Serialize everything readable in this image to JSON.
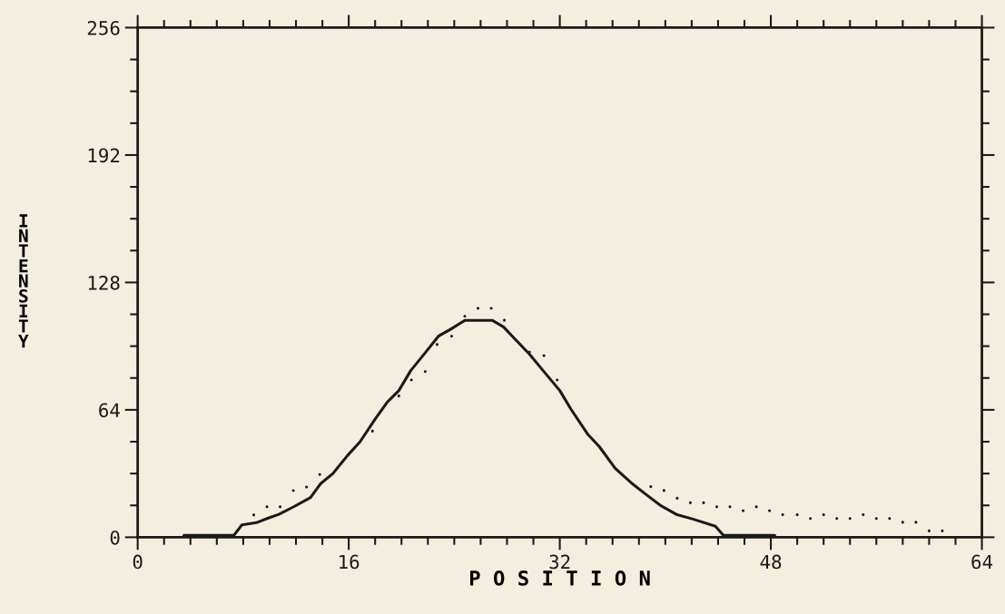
{
  "chart_data": {
    "type": "line",
    "xlabel": "P O S I T I O N",
    "ylabel": "INTENSITY",
    "xlim": [
      0,
      64
    ],
    "ylim": [
      0,
      256
    ],
    "xticks": [
      0,
      16,
      32,
      48,
      64
    ],
    "yticks": [
      0,
      64,
      128,
      192,
      256
    ],
    "grid": false,
    "legend": false,
    "series": [
      {
        "color": "#1a1a1a",
        "x": [
          3.5,
          7.3,
          7.9,
          9.0,
          9.85,
          10.7,
          11.8,
          13.1,
          13.85,
          14.8,
          15.9,
          16.85,
          18.0,
          18.9,
          19.8,
          20.7,
          21.9,
          22.8,
          23.8,
          24.8,
          26.9,
          27.75,
          28.4,
          29.7,
          30.85,
          32.0,
          32.85,
          34.1,
          35.0,
          36.2,
          37.4,
          38.6,
          39.7,
          40.9,
          42.1,
          43.8,
          44.4,
          48.3
        ],
        "values": [
          1,
          1,
          6.2,
          7.3,
          9.5,
          11.5,
          15.2,
          19.9,
          26.8,
          32,
          41,
          47.9,
          59.3,
          67.7,
          73.7,
          83.7,
          93.5,
          101,
          104.8,
          108.9,
          108.9,
          105.6,
          101,
          92,
          82.8,
          73.7,
          64.3,
          51.9,
          45.5,
          34.6,
          27.4,
          21.2,
          15.7,
          11.3,
          9.1,
          5.5,
          1,
          1
        ]
      },
      {
        "type": "scatter",
        "color": "#1a1a1a",
        "x": [
          8.8,
          9.8,
          10.8,
          11.8,
          12.8,
          13.8,
          14.8,
          15.9,
          17.8,
          19.8,
          20.75,
          21.8,
          22.7,
          23.8,
          24.8,
          25.8,
          26.8,
          27.8,
          29.7,
          30.8,
          31.8,
          38.9,
          39.9,
          40.9,
          41.9,
          42.9,
          43.9,
          44.9,
          45.9,
          46.9,
          47.9,
          48.9,
          50.0,
          51.0,
          52.0,
          53.0,
          54.0,
          55.0,
          56.0,
          57.0,
          58.0,
          59.0,
          60.0,
          61.0
        ],
        "values": [
          11.2,
          15.3,
          15.3,
          23.4,
          25.2,
          31.5,
          null,
          null,
          53.3,
          71,
          79,
          83.2,
          96.8,
          101,
          111,
          115,
          115,
          109,
          93,
          91.2,
          79,
          25.4,
          23.5,
          19.6,
          17.3,
          17.3,
          15.3,
          15.3,
          13.3,
          15.3,
          13.3,
          11.3,
          11.3,
          9.4,
          11.3,
          9.4,
          9.4,
          11.3,
          9.4,
          9.4,
          7.5,
          7.5,
          3.2,
          3.2
        ]
      }
    ]
  }
}
